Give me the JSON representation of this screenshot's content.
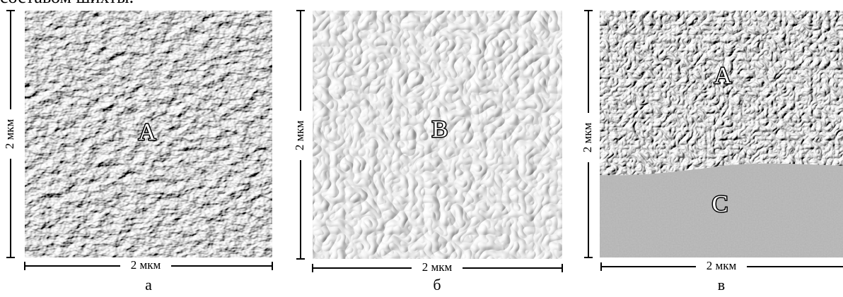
{
  "header": {
    "text": "составом шихты."
  },
  "panels": [
    {
      "caption": "а",
      "scale_x": "2 мкм",
      "scale_y": "2 мкм",
      "regions": [
        "A"
      ]
    },
    {
      "caption": "б",
      "scale_x": "2 мкм",
      "scale_y": "2 мкм",
      "regions": [
        "B"
      ]
    },
    {
      "caption": "в",
      "scale_x": "2 мкм",
      "scale_y": "2 мкм",
      "regions": [
        "A",
        "C"
      ]
    }
  ]
}
